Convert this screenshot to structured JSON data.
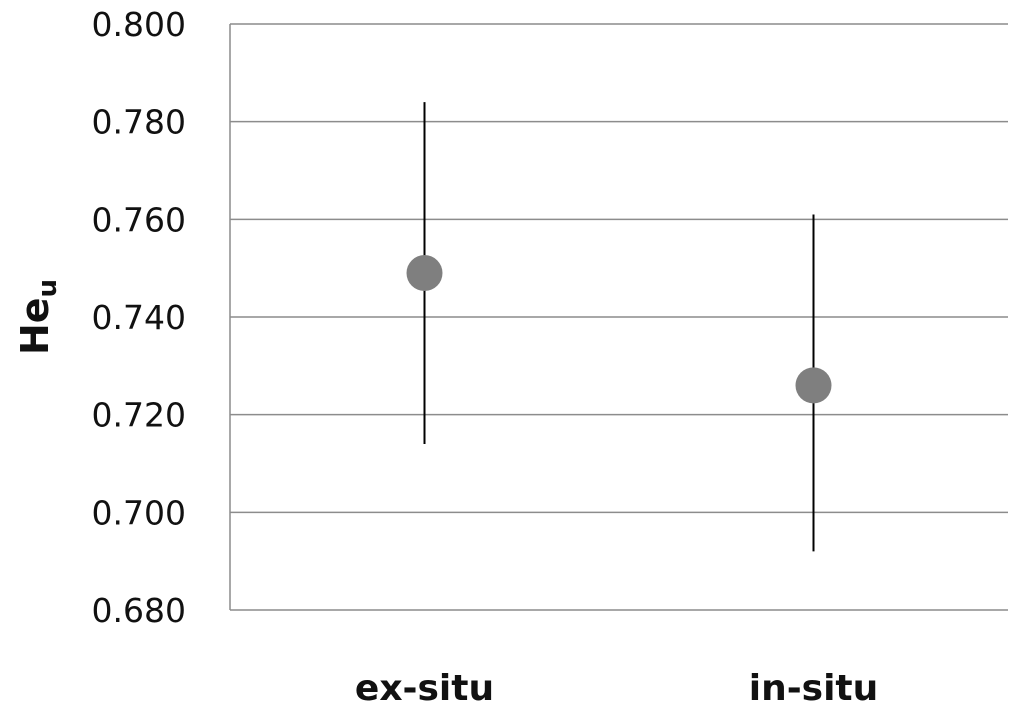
{
  "chart_data": {
    "type": "scatter",
    "title": "",
    "xlabel": "",
    "ylabel": "He",
    "ylabel_subscript": "u",
    "ylim": [
      0.68,
      0.8
    ],
    "yticks": [
      "0.800",
      "0.780",
      "0.760",
      "0.740",
      "0.720",
      "0.700",
      "0.680"
    ],
    "categories": [
      "ex-situ",
      "in-situ"
    ],
    "series": [
      {
        "values": [
          0.749,
          0.726
        ],
        "error_low": [
          0.714,
          0.692
        ],
        "error_high": [
          0.784,
          0.761
        ],
        "color": "#7f7f7f"
      }
    ],
    "grid": true,
    "legend": "none"
  }
}
